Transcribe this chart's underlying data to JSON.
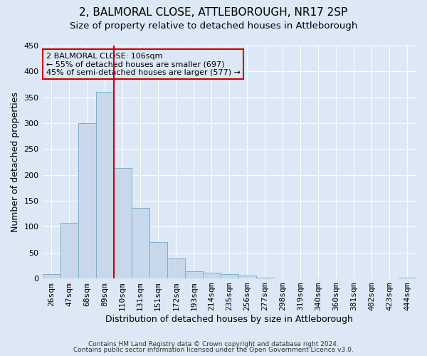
{
  "title": "2, BALMORAL CLOSE, ATTLEBOROUGH, NR17 2SP",
  "subtitle": "Size of property relative to detached houses in Attleborough",
  "xlabel": "Distribution of detached houses by size in Attleborough",
  "ylabel": "Number of detached properties",
  "bin_labels": [
    "26sqm",
    "47sqm",
    "68sqm",
    "89sqm",
    "110sqm",
    "131sqm",
    "151sqm",
    "172sqm",
    "193sqm",
    "214sqm",
    "235sqm",
    "256sqm",
    "277sqm",
    "298sqm",
    "319sqm",
    "340sqm",
    "360sqm",
    "381sqm",
    "402sqm",
    "423sqm",
    "444sqm"
  ],
  "bar_values": [
    8,
    108,
    300,
    360,
    213,
    136,
    70,
    39,
    14,
    11,
    9,
    5,
    1,
    0,
    0,
    0,
    0,
    0,
    0,
    0,
    2
  ],
  "bar_color": "#c8d8ea",
  "bar_edge_color": "#7ab0d0",
  "vline_index": 3.5,
  "vline_color": "#cc0000",
  "annotation_title": "2 BALMORAL CLOSE: 106sqm",
  "annotation_line1": "← 55% of detached houses are smaller (697)",
  "annotation_line2": "45% of semi-detached houses are larger (577) →",
  "annotation_box_edgecolor": "#cc0000",
  "ylim": [
    0,
    450
  ],
  "yticks": [
    0,
    50,
    100,
    150,
    200,
    250,
    300,
    350,
    400,
    450
  ],
  "footer1": "Contains HM Land Registry data © Crown copyright and database right 2024.",
  "footer2": "Contains public sector information licensed under the Open Government Licence v3.0.",
  "background_color": "#dce8f5",
  "grid_color": "#ffffff",
  "title_fontsize": 11,
  "subtitle_fontsize": 9.5,
  "axis_label_fontsize": 9,
  "tick_fontsize": 8,
  "annotation_fontsize": 8,
  "footer_fontsize": 6.5
}
